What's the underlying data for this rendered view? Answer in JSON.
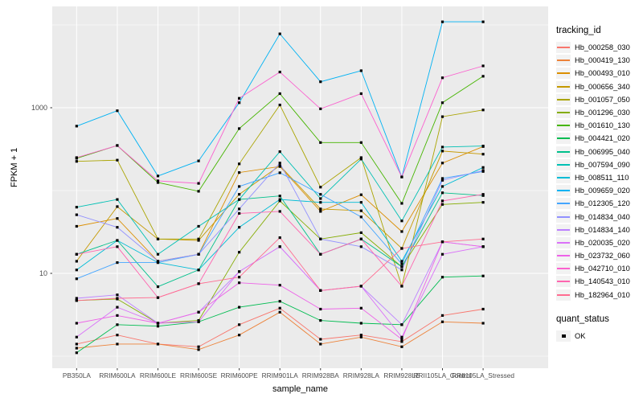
{
  "chart_data": {
    "type": "line",
    "title": "",
    "xlabel": "sample_name",
    "ylabel": "FPKM + 1",
    "y_scale": "log10",
    "y_major_ticks": [
      10,
      1000
    ],
    "y_minor_gridlines": [
      1,
      100,
      10000
    ],
    "ylim": [
      0.71,
      16700
    ],
    "grid": true,
    "legend_position": "right",
    "panel_bg": "#EBEBEB",
    "grid_color": "#FFFFFF",
    "point_color": "#000000",
    "tick_label_color": "#4D4D4D",
    "categories": [
      "PB350LA",
      "RRIM600LA",
      "RRIM600LE",
      "RRIM600SE",
      "RRIM600PE",
      "RRIM901LA",
      "RRIM928BA",
      "RRIM928LA",
      "RRIM928LE",
      "RRII105LA_Control",
      "RRII105LA_Stressed"
    ],
    "series": [
      {
        "name": "Hb_000258_030",
        "color": "#F8766D",
        "values": [
          1.4,
          1.8,
          1.4,
          1.3,
          2.4,
          3.8,
          1.6,
          1.8,
          1.5,
          3.1,
          3.7
        ]
      },
      {
        "name": "Hb_000419_130",
        "color": "#EC8239",
        "values": [
          1.25,
          1.4,
          1.4,
          1.2,
          1.8,
          3.4,
          1.4,
          1.7,
          1.3,
          2.6,
          2.5
        ]
      },
      {
        "name": "Hb_000493_010",
        "color": "#DB8E00",
        "values": [
          37,
          46,
          14,
          17,
          165,
          195,
          56,
          89,
          32,
          215,
          340
        ]
      },
      {
        "name": "Hb_000656_340",
        "color": "#C59900",
        "values": [
          14,
          64,
          26,
          25,
          90,
          200,
          60,
          57,
          20,
          300,
          275
        ]
      },
      {
        "name": "Hb_001057_050",
        "color": "#AAA400",
        "values": [
          225,
          233,
          26,
          26,
          210,
          1080,
          110,
          250,
          7,
          780,
          940
        ]
      },
      {
        "name": "Hb_001296_030",
        "color": "#84AC00",
        "values": [
          4.7,
          4.9,
          2.5,
          2.7,
          18,
          75,
          26,
          31,
          12,
          68,
          72
        ]
      },
      {
        "name": "Hb_001610_130",
        "color": "#45B500",
        "values": [
          245,
          350,
          125,
          98,
          560,
          1480,
          380,
          380,
          70,
          1150,
          2400
        ]
      },
      {
        "name": "Hb_004421_020",
        "color": "#00BC51",
        "values": [
          1.1,
          2.4,
          2.3,
          2.6,
          3.9,
          4.6,
          2.7,
          2.5,
          2.4,
          9,
          9.3
        ]
      },
      {
        "name": "Hb_006995_040",
        "color": "#00C08B",
        "values": [
          17,
          25,
          6.9,
          11,
          78,
          86,
          17,
          26,
          12,
          94,
          87
        ]
      },
      {
        "name": "Hb_007594_090",
        "color": "#00C0B4",
        "values": [
          63,
          78,
          17,
          37,
          78,
          295,
          80,
          240,
          43,
          335,
          345
        ]
      },
      {
        "name": "Hb_008511_110",
        "color": "#00BCD6",
        "values": [
          11,
          25,
          13.5,
          11,
          36,
          78,
          72,
          72,
          14,
          112,
          190
        ]
      },
      {
        "name": "Hb_009659_020",
        "color": "#00B2F3",
        "values": [
          600,
          920,
          150,
          228,
          1150,
          7800,
          2060,
          2800,
          146,
          10900,
          10900
        ]
      },
      {
        "name": "Hb_012305_120",
        "color": "#44A5FF",
        "values": [
          8.6,
          13.5,
          13.5,
          17,
          112,
          164,
          90,
          48,
          13,
          140,
          170
        ]
      },
      {
        "name": "Hb_014834_040",
        "color": "#9291FF",
        "values": [
          51,
          36,
          14,
          17,
          60,
          215,
          26,
          21,
          11,
          133,
          175
        ]
      },
      {
        "name": "Hb_014834_140",
        "color": "#BC81FF",
        "values": [
          5,
          5.5,
          2.5,
          3.4,
          10.5,
          21,
          6.2,
          7,
          2.4,
          24,
          21
        ]
      },
      {
        "name": "Hb_020035_020",
        "color": "#DA71F9",
        "values": [
          1.7,
          3.9,
          2.5,
          2.6,
          10.5,
          21,
          6.2,
          7,
          1.7,
          17,
          21
        ]
      },
      {
        "name": "Hb_023732_060",
        "color": "#ED62E8",
        "values": [
          2.5,
          3.1,
          2.5,
          3.4,
          7.7,
          7.2,
          3.7,
          3.8,
          1.6,
          24,
          21
        ]
      },
      {
        "name": "Hb_042710_010",
        "color": "#FB61CF",
        "values": [
          250,
          350,
          131,
          122,
          1300,
          2700,
          970,
          1480,
          146,
          2300,
          3200
        ]
      },
      {
        "name": "Hb_140543_010",
        "color": "#FF65AF",
        "values": [
          17,
          21,
          5.1,
          7.5,
          53,
          56,
          17,
          26,
          7,
          75,
          90
        ]
      },
      {
        "name": "Hb_182964_010",
        "color": "#FF6C91",
        "values": [
          4.7,
          5,
          5.1,
          7.5,
          9,
          27,
          6.2,
          7,
          20,
          24,
          26
        ]
      }
    ]
  },
  "legend": {
    "tracking_title": "tracking_id",
    "quant_title": "quant_status",
    "quant_items": [
      {
        "label": "OK"
      }
    ]
  }
}
